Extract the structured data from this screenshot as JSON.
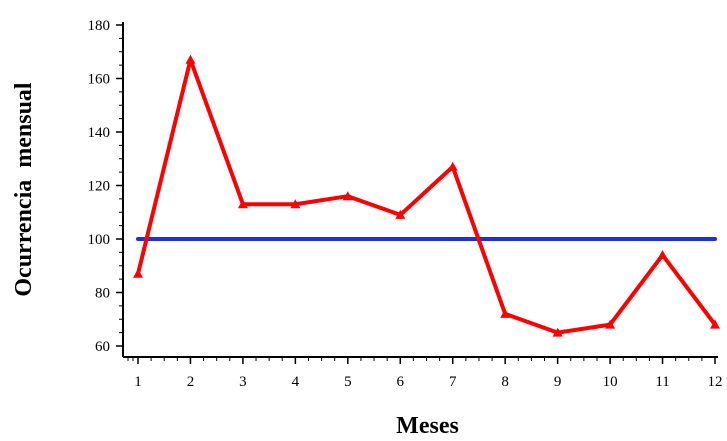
{
  "chart_data": {
    "type": "line",
    "xlabel": "Meses",
    "ylabel": "Ocurrencia  mensual",
    "x": [
      1,
      2,
      3,
      4,
      5,
      6,
      7,
      8,
      9,
      10,
      11,
      12
    ],
    "x_tick_labels": [
      "1",
      "2",
      "3",
      "4",
      "5",
      "6",
      "7",
      "8",
      "9",
      "10",
      "11",
      "12"
    ],
    "ylim": [
      60,
      180
    ],
    "y_ticks": [
      60,
      80,
      100,
      120,
      140,
      160,
      180
    ],
    "y_tick_labels": [
      "60",
      "80",
      "100",
      "120",
      "140",
      "160",
      "180"
    ],
    "grid": false,
    "legend": false,
    "series": [
      {
        "color": "#ff0000",
        "marker": "triangle",
        "values": [
          87,
          167,
          113,
          113,
          116,
          109,
          127,
          72,
          65,
          68,
          94,
          68
        ]
      },
      {
        "color": "#1f2fe0",
        "marker": "none",
        "values": [
          100,
          100,
          100,
          100,
          100,
          100,
          100,
          100,
          100,
          100,
          100,
          100
        ]
      }
    ]
  }
}
